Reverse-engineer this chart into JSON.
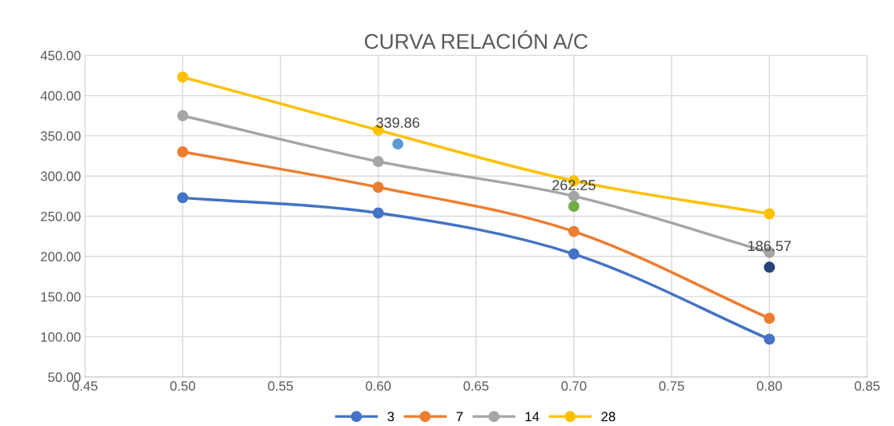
{
  "chart_data": {
    "type": "line",
    "title": "CURVA RELACIÓN A/C",
    "x": [
      0.5,
      0.6,
      0.7,
      0.8
    ],
    "series": [
      {
        "name": "3",
        "color": "#4472c4",
        "values": [
          273,
          254,
          203,
          97
        ]
      },
      {
        "name": "7",
        "color": "#ed7d31",
        "values": [
          330,
          286,
          231,
          123
        ]
      },
      {
        "name": "14",
        "color": "#a5a5a5",
        "values": [
          375,
          318,
          275,
          205
        ]
      },
      {
        "name": "28",
        "color": "#ffc000",
        "values": [
          423,
          357,
          294,
          253
        ]
      },
      {
        "type": "scatter",
        "color": "#5b9bd5",
        "x": [
          0.61
        ],
        "values": [
          339.86
        ],
        "value_labels": [
          "339.86"
        ]
      },
      {
        "type": "scatter",
        "color": "#70ad47",
        "x": [
          0.7
        ],
        "values": [
          262.25
        ],
        "value_labels": [
          "262.25"
        ]
      },
      {
        "type": "scatter",
        "color": "#264478",
        "x": [
          0.8
        ],
        "values": [
          186.57
        ],
        "value_labels": [
          "186.57"
        ]
      }
    ],
    "xlim": [
      0.45,
      0.85
    ],
    "xticks": [
      {
        "value": 0.45,
        "label": "0.45"
      },
      {
        "value": 0.5,
        "label": "0.50"
      },
      {
        "value": 0.55,
        "label": "0.55"
      },
      {
        "value": 0.6,
        "label": "0.60"
      },
      {
        "value": 0.65,
        "label": "0.65"
      },
      {
        "value": 0.7,
        "label": "0.70"
      },
      {
        "value": 0.75,
        "label": "0.75"
      },
      {
        "value": 0.8,
        "label": "0.80"
      },
      {
        "value": 0.85,
        "label": "0.85"
      }
    ],
    "ylim": [
      50,
      450
    ],
    "yticks": [
      {
        "value": 50,
        "label": "50.00"
      },
      {
        "value": 100,
        "label": "100.00"
      },
      {
        "value": 150,
        "label": "150.00"
      },
      {
        "value": 200,
        "label": "200.00"
      },
      {
        "value": 250,
        "label": "250.00"
      },
      {
        "value": 300,
        "label": "300.00"
      },
      {
        "value": 350,
        "label": "350.00"
      },
      {
        "value": 400,
        "label": "400.00"
      },
      {
        "value": 450,
        "label": "450.00"
      }
    ],
    "grid": true,
    "legend": "bottom",
    "marker": "circle",
    "line_style": "solid"
  }
}
